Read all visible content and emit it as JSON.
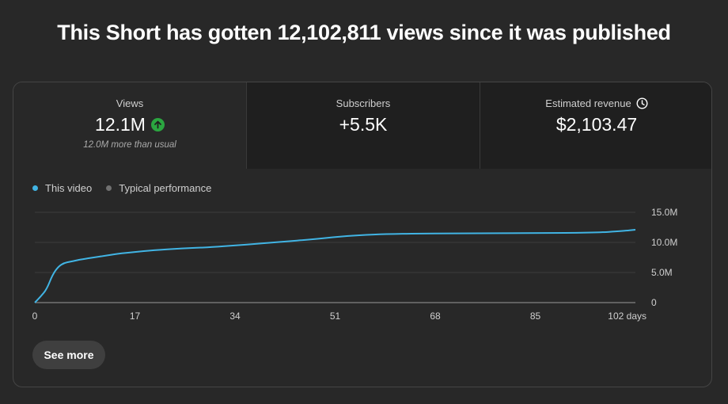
{
  "headline": "This Short has gotten 12,102,811 views since it was published",
  "metrics": [
    {
      "label": "Views",
      "value": "12.1M",
      "note": "12.0M more than usual",
      "icon": "trending-up-icon",
      "icon_color": "#2ba640"
    },
    {
      "label": "Subscribers",
      "value": "+5.5K",
      "note": ""
    },
    {
      "label": "Estimated revenue",
      "value": "$2,103.47",
      "note": "",
      "icon": "clock-icon"
    }
  ],
  "legend": [
    {
      "label": "This video",
      "color": "#41b4e4"
    },
    {
      "label": "Typical performance",
      "color": "#717171"
    }
  ],
  "see_more_label": "See more",
  "chart_data": {
    "type": "line",
    "title": "",
    "xlabel": "",
    "ylabel": "",
    "xlim": [
      0,
      102
    ],
    "ylim": [
      0,
      15000000
    ],
    "x_ticks": [
      0,
      17,
      34,
      51,
      68,
      85,
      102
    ],
    "x_tick_labels": [
      "0",
      "17",
      "34",
      "51",
      "68",
      "85",
      "102 days"
    ],
    "y_ticks": [
      0,
      5000000,
      10000000,
      15000000
    ],
    "y_tick_labels": [
      "0",
      "5.0M",
      "10.0M",
      "15.0M"
    ],
    "grid": true,
    "legend_position": "top-left",
    "series": [
      {
        "name": "This video",
        "color": "#41b4e4",
        "x": [
          0,
          1,
          2,
          3,
          4,
          5,
          6,
          7,
          8,
          10,
          12,
          14,
          17,
          20,
          25,
          30,
          34,
          38,
          42,
          47,
          51,
          55,
          60,
          68,
          75,
          85,
          95,
          100,
          102
        ],
        "y": [
          0,
          1000000,
          2200000,
          4600000,
          6000000,
          6600000,
          6800000,
          7000000,
          7200000,
          7500000,
          7800000,
          8100000,
          8400000,
          8700000,
          9000000,
          9200000,
          9500000,
          9800000,
          10100000,
          10500000,
          10900000,
          11200000,
          11400000,
          11500000,
          11500000,
          11550000,
          11600000,
          11900000,
          12100000
        ]
      }
    ]
  }
}
